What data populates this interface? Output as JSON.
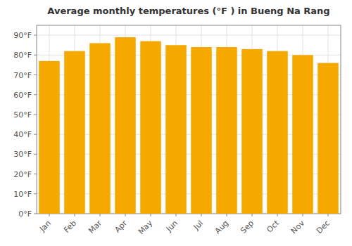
{
  "chart_data": {
    "type": "bar",
    "title": "Average monthly temperatures (°F ) in Bueng Na Rang",
    "categories": [
      "Jan",
      "Feb",
      "Mar",
      "Apr",
      "May",
      "Jun",
      "Jul",
      "Aug",
      "Sep",
      "Oct",
      "Nov",
      "Dec"
    ],
    "values": [
      77,
      82,
      86,
      89,
      87,
      85,
      84,
      84,
      83,
      82,
      80,
      76
    ],
    "color": "#F5A800",
    "ylim": [
      0,
      95
    ],
    "yticks": [
      {
        "value": 0,
        "label": "0°F"
      },
      {
        "value": 10,
        "label": "10°F"
      },
      {
        "value": 20,
        "label": "20°F"
      },
      {
        "value": 30,
        "label": "30°F"
      },
      {
        "value": 40,
        "label": "40°F"
      },
      {
        "value": 50,
        "label": "50°F"
      },
      {
        "value": 60,
        "label": "60°F"
      },
      {
        "value": 70,
        "label": "70°F"
      },
      {
        "value": 80,
        "label": "80°F"
      },
      {
        "value": 90,
        "label": "90°F"
      }
    ],
    "grid": true
  }
}
